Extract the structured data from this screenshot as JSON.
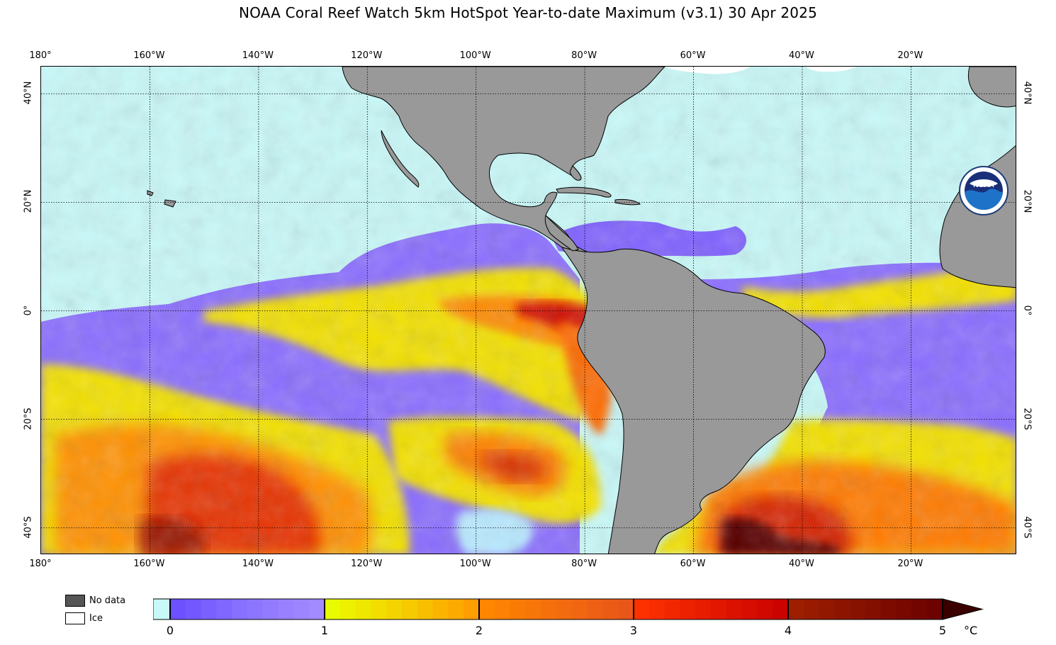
{
  "title": "NOAA Coral Reef Watch 5km HotSpot Year-to-date Maximum  (v3.1)   30 Apr 2025",
  "map": {
    "lon_labels": [
      "180°",
      "160°W",
      "140°W",
      "120°W",
      "100°W",
      "80°W",
      "60°W",
      "40°W",
      "20°W"
    ],
    "lat_labels": [
      "40°N",
      "20°N",
      "0°",
      "20°S",
      "40°S"
    ],
    "extent": {
      "lon_min": -180,
      "lon_max": -0.5,
      "lat_min": -45,
      "lat_max": 45
    },
    "colors": {
      "ice_ocean": "#c8f8f8",
      "land": "#999999",
      "no_data": "#555555",
      "grid": "#000000"
    }
  },
  "legend": {
    "no_data_label": "No data",
    "ice_label": "Ice",
    "no_data_color": "#555555",
    "ice_color": "#ffffff"
  },
  "colorbar": {
    "ticks": [
      "0",
      "1",
      "2",
      "3",
      "4",
      "5"
    ],
    "unit": "°C",
    "stops": [
      {
        "value": 0,
        "color": "#6a4cff"
      },
      {
        "value": 0.5,
        "color": "#8a73ff"
      },
      {
        "value": 1,
        "color": "#a58dff"
      },
      {
        "value": 1.01,
        "color": "#e8ff00"
      },
      {
        "value": 1.5,
        "color": "#f5cf00"
      },
      {
        "value": 2,
        "color": "#ff9900"
      },
      {
        "value": 2.01,
        "color": "#ff8800"
      },
      {
        "value": 3,
        "color": "#e8531a"
      },
      {
        "value": 3.01,
        "color": "#ff3300"
      },
      {
        "value": 4,
        "color": "#c80000"
      },
      {
        "value": 4.01,
        "color": "#a02000"
      },
      {
        "value": 5,
        "color": "#6a0000"
      }
    ],
    "below_zero_color": "#c8f8f8",
    "arrow_color": "#3a0000"
  },
  "logo": {
    "text": "NOAA"
  }
}
